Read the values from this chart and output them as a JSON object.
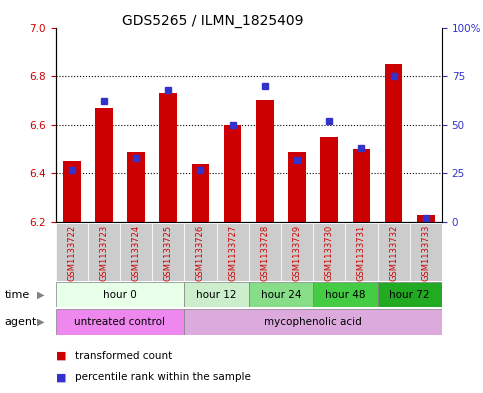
{
  "title": "GDS5265 / ILMN_1825409",
  "samples": [
    "GSM1133722",
    "GSM1133723",
    "GSM1133724",
    "GSM1133725",
    "GSM1133726",
    "GSM1133727",
    "GSM1133728",
    "GSM1133729",
    "GSM1133730",
    "GSM1133731",
    "GSM1133732",
    "GSM1133733"
  ],
  "red_values": [
    6.45,
    6.67,
    6.49,
    6.73,
    6.44,
    6.6,
    6.7,
    6.49,
    6.55,
    6.5,
    6.85,
    6.23
  ],
  "blue_values": [
    27,
    62,
    33,
    68,
    27,
    50,
    70,
    32,
    52,
    38,
    75,
    2
  ],
  "y_min": 6.2,
  "y_max": 7.0,
  "y_ticks_left": [
    6.2,
    6.4,
    6.6,
    6.8,
    7.0
  ],
  "y_ticks_right": [
    0,
    25,
    50,
    75,
    100
  ],
  "bar_color": "#cc0000",
  "blue_color": "#3333cc",
  "bar_width": 0.55,
  "time_groups": [
    {
      "label": "hour 0",
      "start": 0,
      "end": 4,
      "color": "#e8ffe8"
    },
    {
      "label": "hour 12",
      "start": 4,
      "end": 6,
      "color": "#cceecc"
    },
    {
      "label": "hour 24",
      "start": 6,
      "end": 8,
      "color": "#88dd88"
    },
    {
      "label": "hour 48",
      "start": 8,
      "end": 10,
      "color": "#44cc44"
    },
    {
      "label": "hour 72",
      "start": 10,
      "end": 12,
      "color": "#22aa22"
    }
  ],
  "agent_groups": [
    {
      "label": "untreated control",
      "start": 0,
      "end": 4,
      "color": "#ee88ee"
    },
    {
      "label": "mycophenolic acid",
      "start": 4,
      "end": 12,
      "color": "#ddaadd"
    }
  ],
  "legend_red": "transformed count",
  "legend_blue": "percentile rank within the sample",
  "bg_color": "#ffffff",
  "plot_bg": "#ffffff",
  "label_bg": "#cccccc",
  "title_fontsize": 10,
  "tick_fontsize": 7.5,
  "sample_fontsize": 6,
  "row_fontsize": 8
}
